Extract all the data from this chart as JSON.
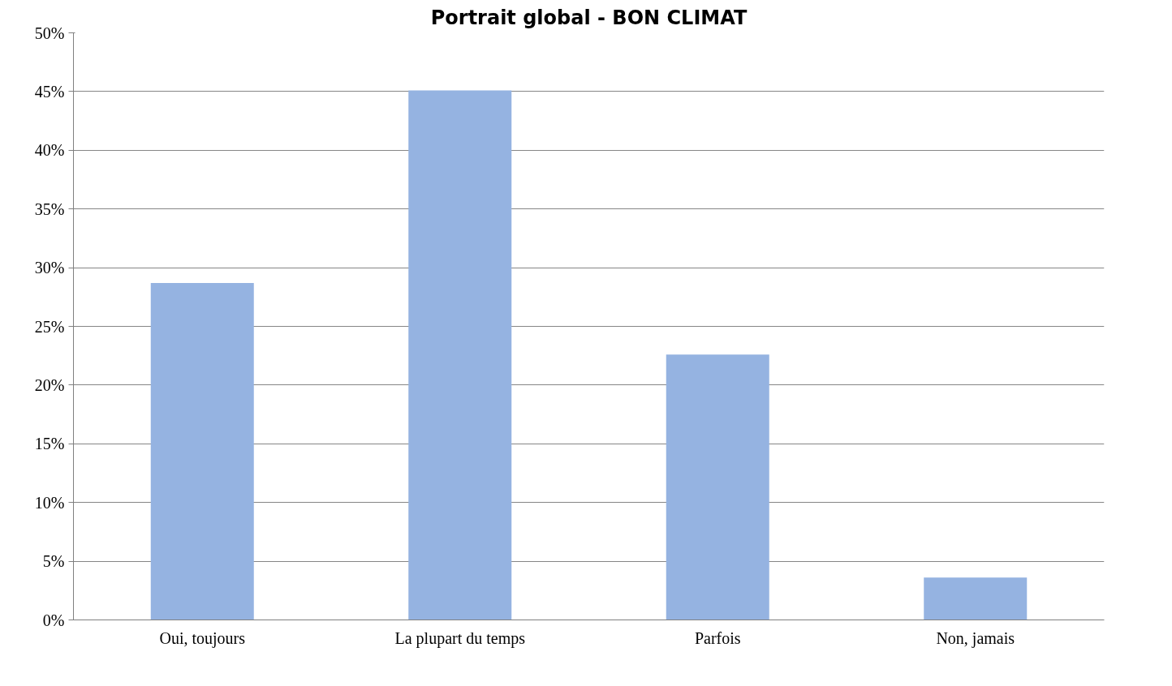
{
  "chart_data": {
    "type": "bar",
    "title": "Portrait global - BON CLIMAT",
    "categories": [
      "Oui, toujours",
      "La plupart du temps",
      "Parfois",
      "Non, jamais"
    ],
    "values": [
      28.7,
      45.1,
      22.6,
      3.6
    ],
    "color": "#95b3e1",
    "ylim": [
      0,
      50
    ],
    "yticks": [
      {
        "value": 0,
        "label": "0%"
      },
      {
        "value": 5,
        "label": "5%"
      },
      {
        "value": 10,
        "label": "10%"
      },
      {
        "value": 15,
        "label": "15%"
      },
      {
        "value": 20,
        "label": "20%"
      },
      {
        "value": 25,
        "label": "25%"
      },
      {
        "value": 30,
        "label": "30%"
      },
      {
        "value": 35,
        "label": "35%"
      },
      {
        "value": 40,
        "label": "40%"
      },
      {
        "value": 45,
        "label": "45%"
      },
      {
        "value": 50,
        "label": "50%"
      }
    ],
    "grid": "y"
  }
}
